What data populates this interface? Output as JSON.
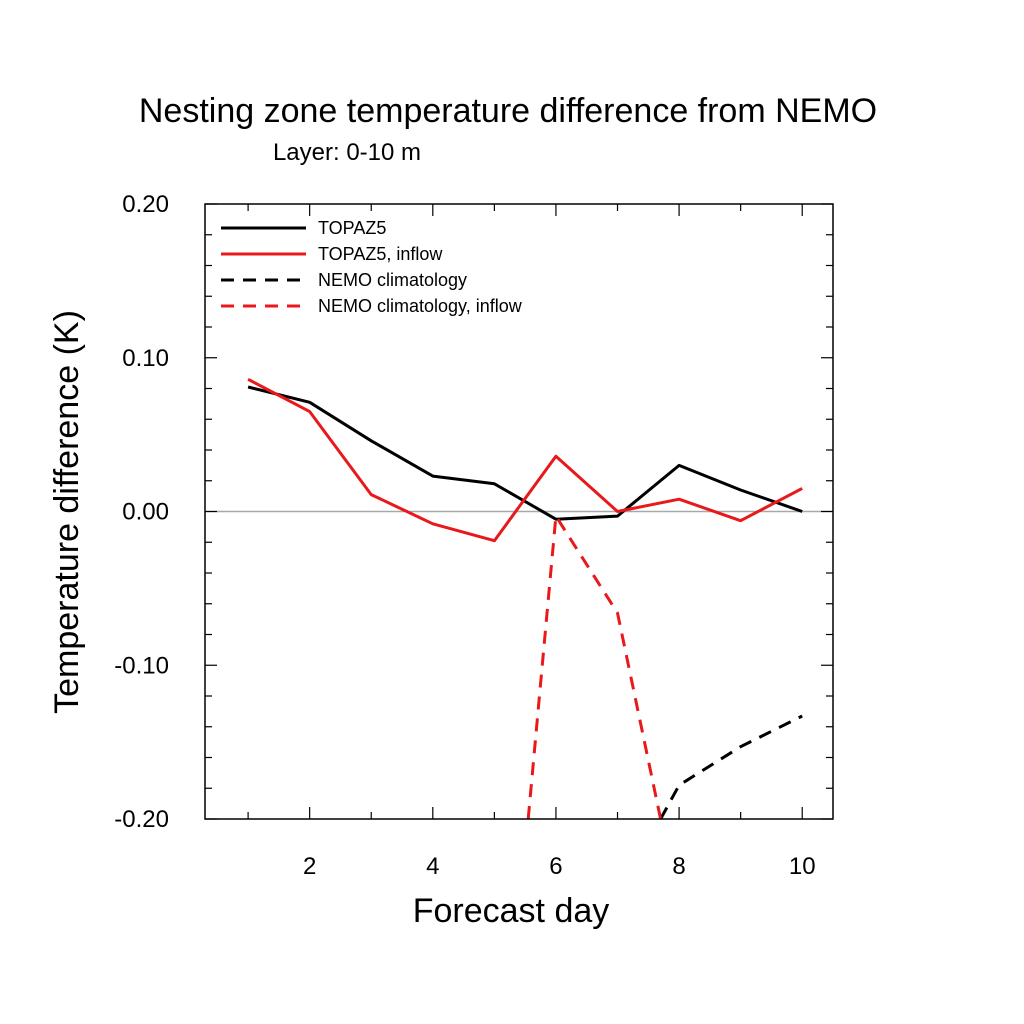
{
  "chart_data": {
    "type": "line",
    "title": "Nesting zone temperature difference from NEMO",
    "subtitle": "Layer: 0-10 m",
    "xlabel": "Forecast day",
    "ylabel": "Temperature difference (K)",
    "xlim": [
      0.3,
      10.5
    ],
    "ylim": [
      -0.2,
      0.2
    ],
    "x_ticks": [
      2,
      4,
      6,
      8,
      10
    ],
    "x_tick_labels": [
      "2",
      "4",
      "6",
      "8",
      "10"
    ],
    "y_ticks": [
      -0.2,
      -0.1,
      0.0,
      0.1,
      0.2
    ],
    "y_tick_labels": [
      "-0.20",
      "-0.10",
      "0.00",
      "0.10",
      "0.20"
    ],
    "reference_line": 0.0,
    "grid": false,
    "legend_position": "top-left",
    "series": [
      {
        "name": "TOPAZ5",
        "color": "#000000",
        "dash": "solid",
        "x": [
          1,
          2,
          3,
          4,
          5,
          6,
          7,
          8,
          9,
          10
        ],
        "y": [
          0.081,
          0.071,
          0.046,
          0.023,
          0.018,
          -0.005,
          -0.003,
          0.03,
          0.014,
          0.0
        ]
      },
      {
        "name": "TOPAZ5, inflow",
        "color": "#e8181b",
        "dash": "solid",
        "x": [
          1,
          2,
          3,
          4,
          5,
          6,
          7,
          8,
          9,
          10
        ],
        "y": [
          0.086,
          0.065,
          0.011,
          -0.008,
          -0.019,
          0.036,
          0.0,
          0.008,
          -0.006,
          0.015
        ]
      },
      {
        "name": "NEMO climatology",
        "color": "#000000",
        "dash": "dashed",
        "x": [
          7.7,
          8,
          9,
          10
        ],
        "y": [
          -0.2,
          -0.178,
          -0.153,
          -0.133
        ]
      },
      {
        "name": "NEMO climatology, inflow",
        "color": "#e8181b",
        "dash": "dashed",
        "x": [
          5.55,
          6,
          7,
          7.7
        ],
        "y": [
          -0.2,
          -0.003,
          -0.066,
          -0.2
        ]
      }
    ]
  }
}
